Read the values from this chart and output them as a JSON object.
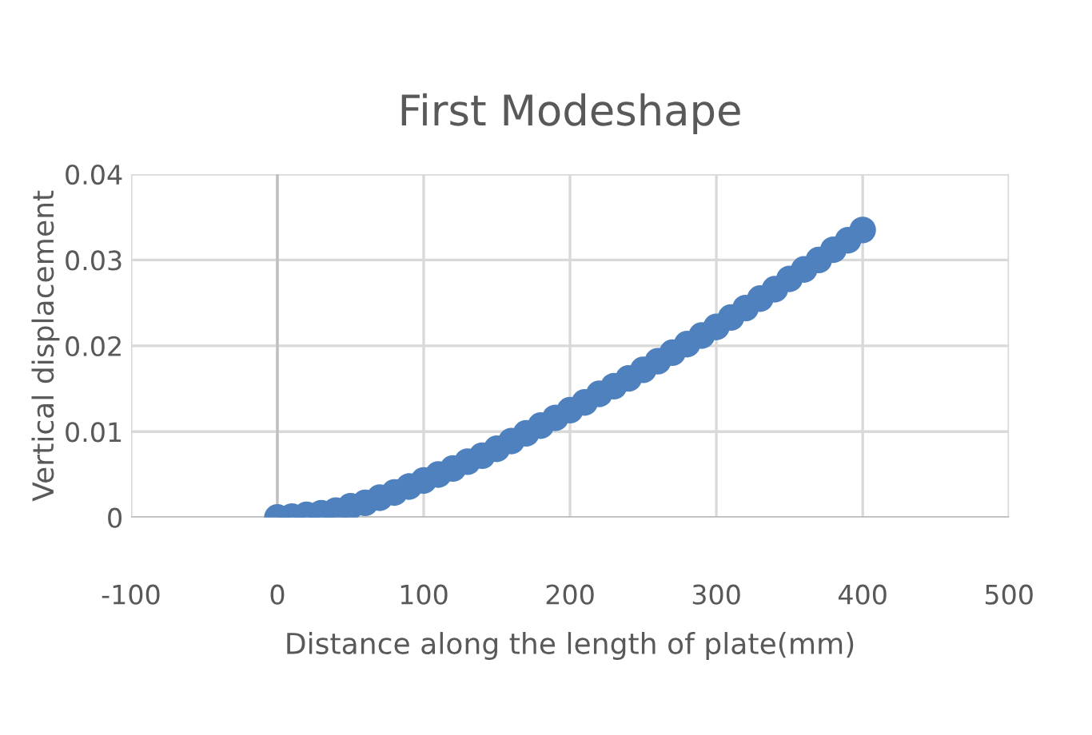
{
  "chart_data": {
    "type": "scatter",
    "title": "First Modeshape",
    "xlabel": "Distance along the length of plate(mm)",
    "ylabel": "Vertical displacement",
    "x": [
      0,
      10,
      20,
      30,
      40,
      50,
      60,
      70,
      80,
      90,
      100,
      110,
      120,
      130,
      140,
      150,
      160,
      170,
      180,
      190,
      200,
      210,
      220,
      230,
      240,
      250,
      260,
      270,
      280,
      290,
      300,
      310,
      320,
      330,
      340,
      350,
      360,
      370,
      380,
      390,
      400
    ],
    "series": [
      {
        "color": "#4e81bd",
        "values": [
          0,
          0.0001,
          0.0003,
          0.0005,
          0.0008,
          0.0013,
          0.0017,
          0.0023,
          0.0029,
          0.0036,
          0.0043,
          0.005,
          0.0057,
          0.0065,
          0.0072,
          0.008,
          0.0089,
          0.0098,
          0.0107,
          0.0116,
          0.0125,
          0.0134,
          0.0144,
          0.0153,
          0.0162,
          0.0172,
          0.0182,
          0.0192,
          0.0202,
          0.0212,
          0.0222,
          0.0233,
          0.0244,
          0.0255,
          0.0266,
          0.0278,
          0.0289,
          0.03,
          0.0312,
          0.0323,
          0.0335
        ]
      }
    ],
    "xlim": [
      -100,
      500
    ],
    "xticks": [
      -100,
      0,
      100,
      200,
      300,
      400,
      500
    ],
    "ylim": [
      0,
      0.04
    ],
    "yticks": [
      0,
      0.01,
      0.02,
      0.03,
      0.04
    ],
    "grid": true,
    "marker": "circle",
    "legend": false
  }
}
